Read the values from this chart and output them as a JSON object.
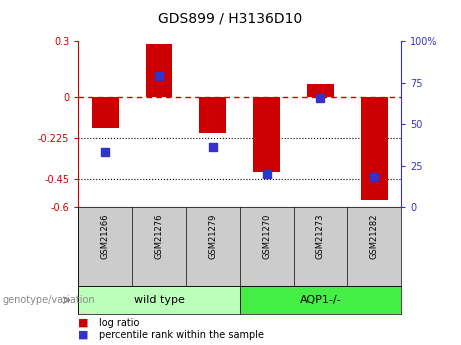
{
  "title": "GDS899 / H3136D10",
  "categories": [
    "GSM21266",
    "GSM21276",
    "GSM21279",
    "GSM21270",
    "GSM21273",
    "GSM21282"
  ],
  "log_ratio": [
    -0.17,
    0.285,
    -0.2,
    -0.41,
    0.07,
    -0.56
  ],
  "percentile_rank": [
    33,
    79,
    36,
    20,
    66,
    18
  ],
  "left_ylim": [
    -0.6,
    0.3
  ],
  "left_yticks": [
    0.3,
    0,
    -0.225,
    -0.45,
    -0.6
  ],
  "left_yticklabels": [
    "0.3",
    "0",
    "-0.225",
    "-0.45",
    "-0.6"
  ],
  "right_ylim": [
    0,
    100
  ],
  "right_yticks": [
    100,
    75,
    50,
    25,
    0
  ],
  "right_yticklabels": [
    "100%",
    "75",
    "50",
    "25",
    "0"
  ],
  "hline_y": 0,
  "dotted_hlines": [
    -0.225,
    -0.45
  ],
  "bar_color": "#cc0000",
  "dot_color": "#3333cc",
  "bar_width": 0.5,
  "dot_size": 40,
  "groups": [
    {
      "label": "wild type",
      "indices": [
        0,
        1,
        2
      ],
      "color": "#bbffbb"
    },
    {
      "label": "AQP1-/-",
      "indices": [
        3,
        4,
        5
      ],
      "color": "#44ee44"
    }
  ],
  "group_label": "genotype/variation",
  "legend_items": [
    {
      "label": "log ratio",
      "color": "#cc0000"
    },
    {
      "label": "percentile rank within the sample",
      "color": "#3333cc"
    }
  ],
  "tick_label_color_left": "#cc0000",
  "tick_label_color_right": "#3333cc",
  "dashed_line_color": "#cc0000",
  "plot_bg": "#ffffff",
  "label_area_bg": "#cccccc"
}
